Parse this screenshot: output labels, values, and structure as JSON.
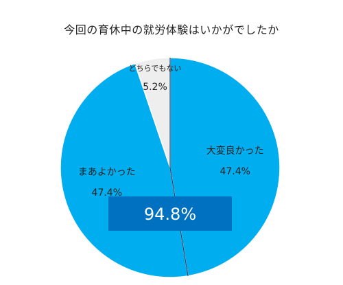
{
  "chart_data": {
    "type": "pie",
    "title": "今回の育休中の就労体験はいかがでしたか",
    "slices": [
      {
        "label": "大変良かった",
        "value": 47.4,
        "percent_text": "47.4%",
        "color": "#00ADEF"
      },
      {
        "label": "まあよかった",
        "value": 47.4,
        "percent_text": "47.4%",
        "color": "#00ADEF"
      },
      {
        "label": "どちらでもない",
        "value": 5.2,
        "percent_text": "5.2%",
        "color": "#EEEEEE"
      }
    ],
    "callout": {
      "text": "94.8%",
      "color": "#0070C0"
    },
    "divider_color": "#1E3A5F",
    "outline_color": "#FFFFFF",
    "label_color": "#222222"
  }
}
